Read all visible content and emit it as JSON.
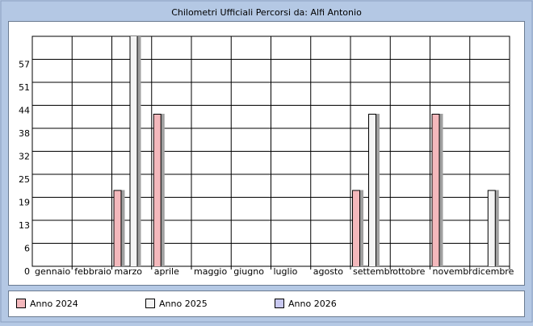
{
  "chart_data": {
    "type": "bar",
    "title": "Chilometri Ufficiali Percorsi da: Alfi  Antonio",
    "categories": [
      "gennaio",
      "febbraio",
      "marzo",
      "aprile",
      "maggio",
      "giugno",
      "luglio",
      "agosto",
      "settembr",
      "ottobre",
      "novembr",
      "dicembre"
    ],
    "series": [
      {
        "name": "Anno 2024",
        "color": "#f4b8bc",
        "values": [
          null,
          null,
          21,
          42,
          null,
          null,
          null,
          null,
          21,
          null,
          42,
          null
        ]
      },
      {
        "name": "Anno 2025",
        "color": "#f4f4f4",
        "values": [
          null,
          null,
          64,
          null,
          null,
          null,
          null,
          null,
          42,
          null,
          null,
          21
        ]
      },
      {
        "name": "Anno 2026",
        "color": "#c8c8f0",
        "values": [
          null,
          null,
          null,
          null,
          null,
          null,
          null,
          null,
          null,
          null,
          null,
          null
        ]
      }
    ],
    "ylim": [
      0,
      63.333
    ],
    "yticks": [
      0,
      {
        "value": 6.333,
        "label": "6"
      },
      {
        "value": 12.667,
        "label": "13"
      },
      19,
      {
        "value": 25.333,
        "label": "25"
      },
      {
        "value": 31.667,
        "label": "32"
      },
      38,
      {
        "value": 44.333,
        "label": "44"
      },
      {
        "value": 50.667,
        "label": "51"
      },
      57
    ],
    "grid": true
  }
}
